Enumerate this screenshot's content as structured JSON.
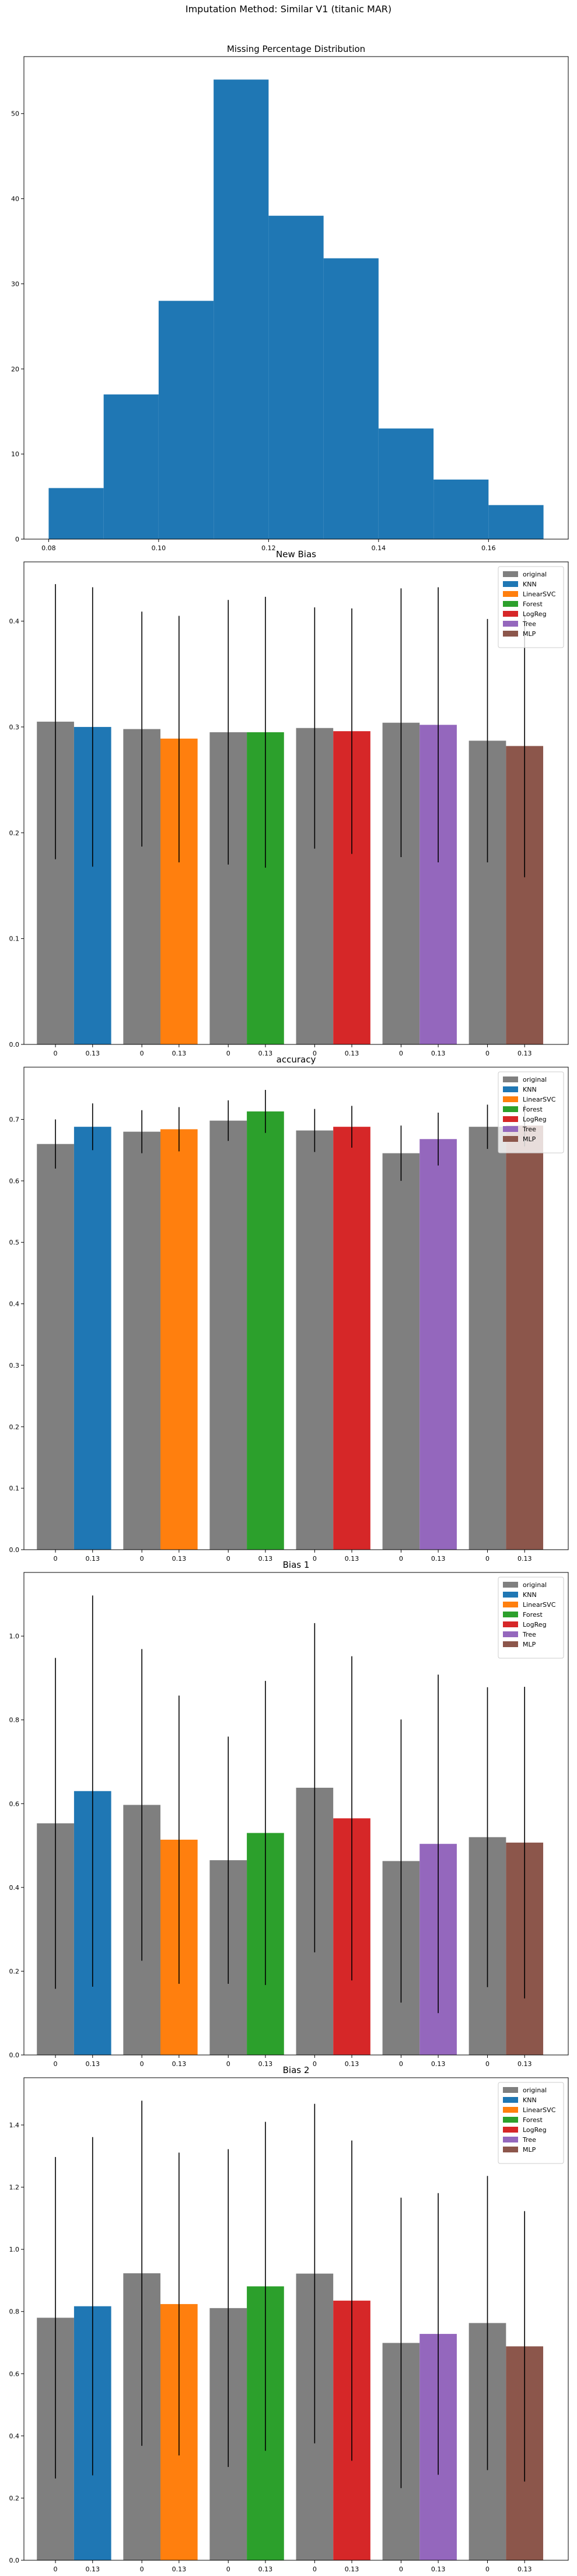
{
  "figure": {
    "suptitle": "Imputation Method: Similar V1 (titanic MAR)",
    "colors": {
      "original": "#7f7f7f",
      "KNN": "#1f77b4",
      "LinearSVC": "#ff7f0e",
      "Forest": "#2ca02c",
      "LogReg": "#d62728",
      "Tree": "#9467bd",
      "MLP": "#8c564b",
      "hist": "#1f77b4"
    }
  },
  "chart_data": [
    {
      "type": "histogram",
      "title": "Missing Percentage Distribution",
      "xlabel": "",
      "ylabel": "",
      "bin_edges": [
        0.08,
        0.09,
        0.1,
        0.11,
        0.12,
        0.13,
        0.14,
        0.15,
        0.16,
        0.17
      ],
      "counts": [
        6,
        17,
        28,
        54,
        38,
        33,
        13,
        7,
        4
      ],
      "xlim": [
        0.0755,
        0.1745
      ],
      "ylim": [
        0,
        56.7
      ],
      "xticks": [
        0.08,
        0.1,
        0.12,
        0.14,
        0.16
      ],
      "xtick_labels": [
        "0.08",
        "0.10",
        "0.12",
        "0.14",
        "0.16"
      ],
      "yticks": [
        0,
        10,
        20,
        30,
        40,
        50
      ],
      "ytick_labels": [
        "0",
        "10",
        "20",
        "30",
        "40",
        "50"
      ]
    },
    {
      "type": "bar",
      "title": "New Bias",
      "legend": [
        "original",
        "KNN",
        "LinearSVC",
        "Forest",
        "LogReg",
        "Tree",
        "MLP"
      ],
      "legend_position": "top-right",
      "tick_labels": [
        "0",
        "0.13"
      ],
      "series": [
        {
          "name": "KNN",
          "original": 0.305,
          "imputed": 0.3,
          "original_err": [
            0.175,
            0.435
          ],
          "imputed_err": [
            0.168,
            0.432
          ]
        },
        {
          "name": "LinearSVC",
          "original": 0.298,
          "imputed": 0.289,
          "original_err": [
            0.187,
            0.409
          ],
          "imputed_err": [
            0.172,
            0.405
          ]
        },
        {
          "name": "Forest",
          "original": 0.295,
          "imputed": 0.295,
          "original_err": [
            0.17,
            0.42
          ],
          "imputed_err": [
            0.167,
            0.423
          ]
        },
        {
          "name": "LogReg",
          "original": 0.299,
          "imputed": 0.296,
          "original_err": [
            0.185,
            0.413
          ],
          "imputed_err": [
            0.18,
            0.412
          ]
        },
        {
          "name": "Tree",
          "original": 0.304,
          "imputed": 0.302,
          "original_err": [
            0.177,
            0.431
          ],
          "imputed_err": [
            0.172,
            0.432
          ]
        },
        {
          "name": "MLP",
          "original": 0.287,
          "imputed": 0.282,
          "original_err": [
            0.172,
            0.402
          ],
          "imputed_err": [
            0.158,
            0.406
          ]
        }
      ],
      "ylim": [
        0,
        0.456
      ],
      "yticks": [
        0.0,
        0.1,
        0.2,
        0.3,
        0.4
      ],
      "ytick_labels": [
        "0.0",
        "0.1",
        "0.2",
        "0.3",
        "0.4"
      ]
    },
    {
      "type": "bar",
      "title": "accuracy",
      "legend": [
        "original",
        "KNN",
        "LinearSVC",
        "Forest",
        "LogReg",
        "Tree",
        "MLP"
      ],
      "legend_position": "top-right",
      "tick_labels": [
        "0",
        "0.13"
      ],
      "series": [
        {
          "name": "KNN",
          "original": 0.66,
          "imputed": 0.688,
          "original_err": [
            0.62,
            0.7
          ],
          "imputed_err": [
            0.65,
            0.726
          ]
        },
        {
          "name": "LinearSVC",
          "original": 0.68,
          "imputed": 0.684,
          "original_err": [
            0.645,
            0.715
          ],
          "imputed_err": [
            0.648,
            0.72
          ]
        },
        {
          "name": "Forest",
          "original": 0.698,
          "imputed": 0.713,
          "original_err": [
            0.665,
            0.731
          ],
          "imputed_err": [
            0.678,
            0.748
          ]
        },
        {
          "name": "LogReg",
          "original": 0.682,
          "imputed": 0.688,
          "original_err": [
            0.647,
            0.717
          ],
          "imputed_err": [
            0.654,
            0.722
          ]
        },
        {
          "name": "Tree",
          "original": 0.645,
          "imputed": 0.668,
          "original_err": [
            0.6,
            0.69
          ],
          "imputed_err": [
            0.625,
            0.711
          ]
        },
        {
          "name": "MLP",
          "original": 0.688,
          "imputed": 0.69,
          "original_err": [
            0.652,
            0.724
          ],
          "imputed_err": [
            0.656,
            0.724
          ]
        }
      ],
      "ylim": [
        0,
        0.785
      ],
      "yticks": [
        0.0,
        0.1,
        0.2,
        0.3,
        0.4,
        0.5,
        0.6,
        0.7
      ],
      "ytick_labels": [
        "0.0",
        "0.1",
        "0.2",
        "0.3",
        "0.4",
        "0.5",
        "0.6",
        "0.7"
      ]
    },
    {
      "type": "bar",
      "title": "Bias 1",
      "legend": [
        "original",
        "KNN",
        "LinearSVC",
        "Forest",
        "LogReg",
        "Tree",
        "MLP"
      ],
      "legend_position": "top-right",
      "tick_labels": [
        "0",
        "0.13"
      ],
      "series": [
        {
          "name": "KNN",
          "original": 0.553,
          "imputed": 0.63,
          "original_err": [
            0.158,
            0.948
          ],
          "imputed_err": [
            0.163,
            1.097
          ]
        },
        {
          "name": "LinearSVC",
          "original": 0.597,
          "imputed": 0.514,
          "original_err": [
            0.225,
            0.969
          ],
          "imputed_err": [
            0.17,
            0.858
          ]
        },
        {
          "name": "Forest",
          "original": 0.465,
          "imputed": 0.53,
          "original_err": [
            0.17,
            0.76
          ],
          "imputed_err": [
            0.167,
            0.893
          ]
        },
        {
          "name": "LogReg",
          "original": 0.638,
          "imputed": 0.565,
          "original_err": [
            0.245,
            1.031
          ],
          "imputed_err": [
            0.178,
            0.952
          ]
        },
        {
          "name": "Tree",
          "original": 0.463,
          "imputed": 0.504,
          "original_err": [
            0.125,
            0.801
          ],
          "imputed_err": [
            0.1,
            0.908
          ]
        },
        {
          "name": "MLP",
          "original": 0.52,
          "imputed": 0.507,
          "original_err": [
            0.162,
            0.878
          ],
          "imputed_err": [
            0.135,
            0.879
          ]
        }
      ],
      "ylim": [
        0,
        1.152
      ],
      "yticks": [
        0.0,
        0.2,
        0.4,
        0.6,
        0.8,
        1.0
      ],
      "ytick_labels": [
        "0.0",
        "0.2",
        "0.4",
        "0.6",
        "0.8",
        "1.0"
      ]
    },
    {
      "type": "bar",
      "title": "Bias 2",
      "legend": [
        "original",
        "KNN",
        "LinearSVC",
        "Forest",
        "LogReg",
        "Tree",
        "MLP"
      ],
      "legend_position": "top-right",
      "tick_labels": [
        "0",
        "0.13"
      ],
      "series": [
        {
          "name": "KNN",
          "original": 0.78,
          "imputed": 0.817,
          "original_err": [
            0.263,
            1.297
          ],
          "imputed_err": [
            0.273,
            1.361
          ]
        },
        {
          "name": "LinearSVC",
          "original": 0.923,
          "imputed": 0.824,
          "original_err": [
            0.368,
            1.478
          ],
          "imputed_err": [
            0.337,
            1.311
          ]
        },
        {
          "name": "Forest",
          "original": 0.811,
          "imputed": 0.881,
          "original_err": [
            0.3,
            1.322
          ],
          "imputed_err": [
            0.352,
            1.41
          ]
        },
        {
          "name": "LogReg",
          "original": 0.922,
          "imputed": 0.835,
          "original_err": [
            0.376,
            1.468
          ],
          "imputed_err": [
            0.32,
            1.35
          ]
        },
        {
          "name": "Tree",
          "original": 0.699,
          "imputed": 0.728,
          "original_err": [
            0.232,
            1.166
          ],
          "imputed_err": [
            0.275,
            1.181
          ]
        },
        {
          "name": "MLP",
          "original": 0.763,
          "imputed": 0.688,
          "original_err": [
            0.29,
            1.236
          ],
          "imputed_err": [
            0.253,
            1.123
          ]
        }
      ],
      "ylim": [
        0,
        1.552
      ],
      "yticks": [
        0.0,
        0.2,
        0.4,
        0.6,
        0.8,
        1.0,
        1.2,
        1.4
      ],
      "ytick_labels": [
        "0.0",
        "0.2",
        "0.4",
        "0.6",
        "0.8",
        "1.0",
        "1.2",
        "1.4"
      ]
    }
  ]
}
